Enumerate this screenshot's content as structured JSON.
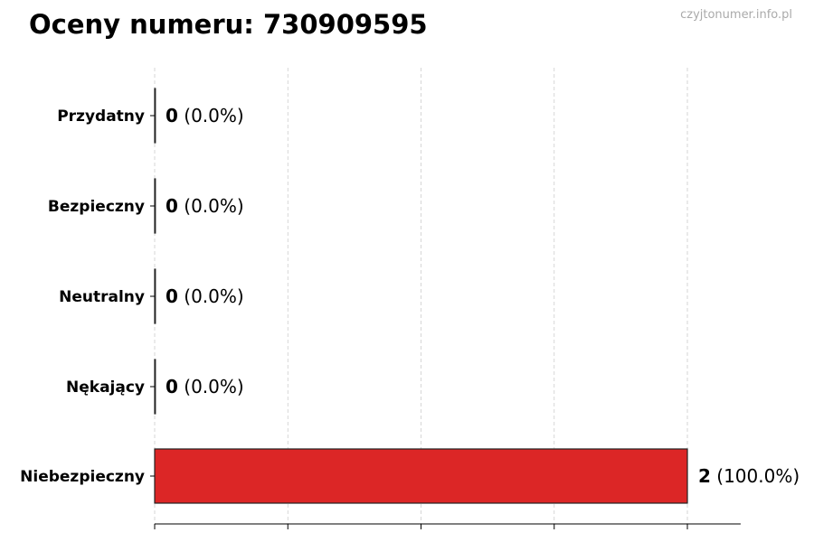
{
  "chart_data": {
    "type": "bar",
    "orientation": "horizontal",
    "title": "Oceny numeru: 730909595",
    "categories": [
      "Przydatny",
      "Bezpieczny",
      "Neutralny",
      "Nękający",
      "Niebezpieczny"
    ],
    "values": [
      0,
      0,
      0,
      0,
      2
    ],
    "percent_labels": [
      "(0.0%)",
      "(0.0%)",
      "(0.0%)",
      "(0.0%)",
      "(100.0%)"
    ],
    "xlim": [
      0,
      2.2
    ],
    "x_ticks": [
      0,
      0.5,
      1,
      1.5,
      2
    ],
    "grid": "vertical dashed",
    "bar_color": "#dc2626",
    "xlabel": "",
    "ylabel": ""
  },
  "watermark": "czyjtonumer.info.pl"
}
